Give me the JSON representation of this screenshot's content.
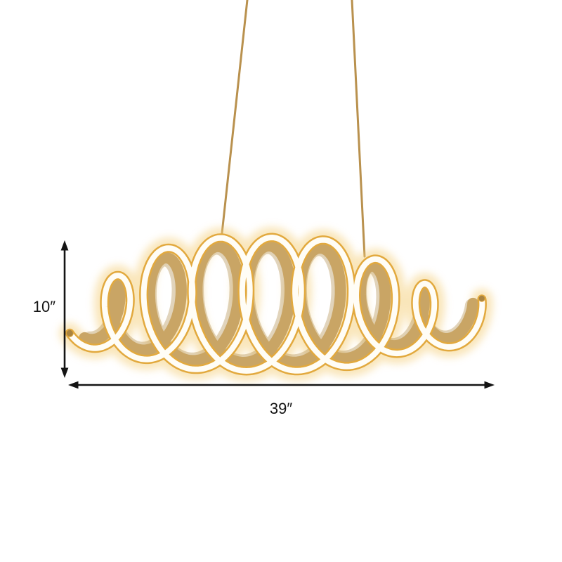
{
  "dimensions": {
    "height_label": "10″",
    "width_label": "39″"
  },
  "colors": {
    "background": "#ffffff",
    "gold_band": "#c9a565",
    "gold_band_shadow": "#a9833f",
    "gold_edge": "#e2a93e",
    "led_face": "#fffdf6",
    "glow": "#f4ce78",
    "cable": "#b9914e",
    "dimension_lines": "#141414"
  }
}
